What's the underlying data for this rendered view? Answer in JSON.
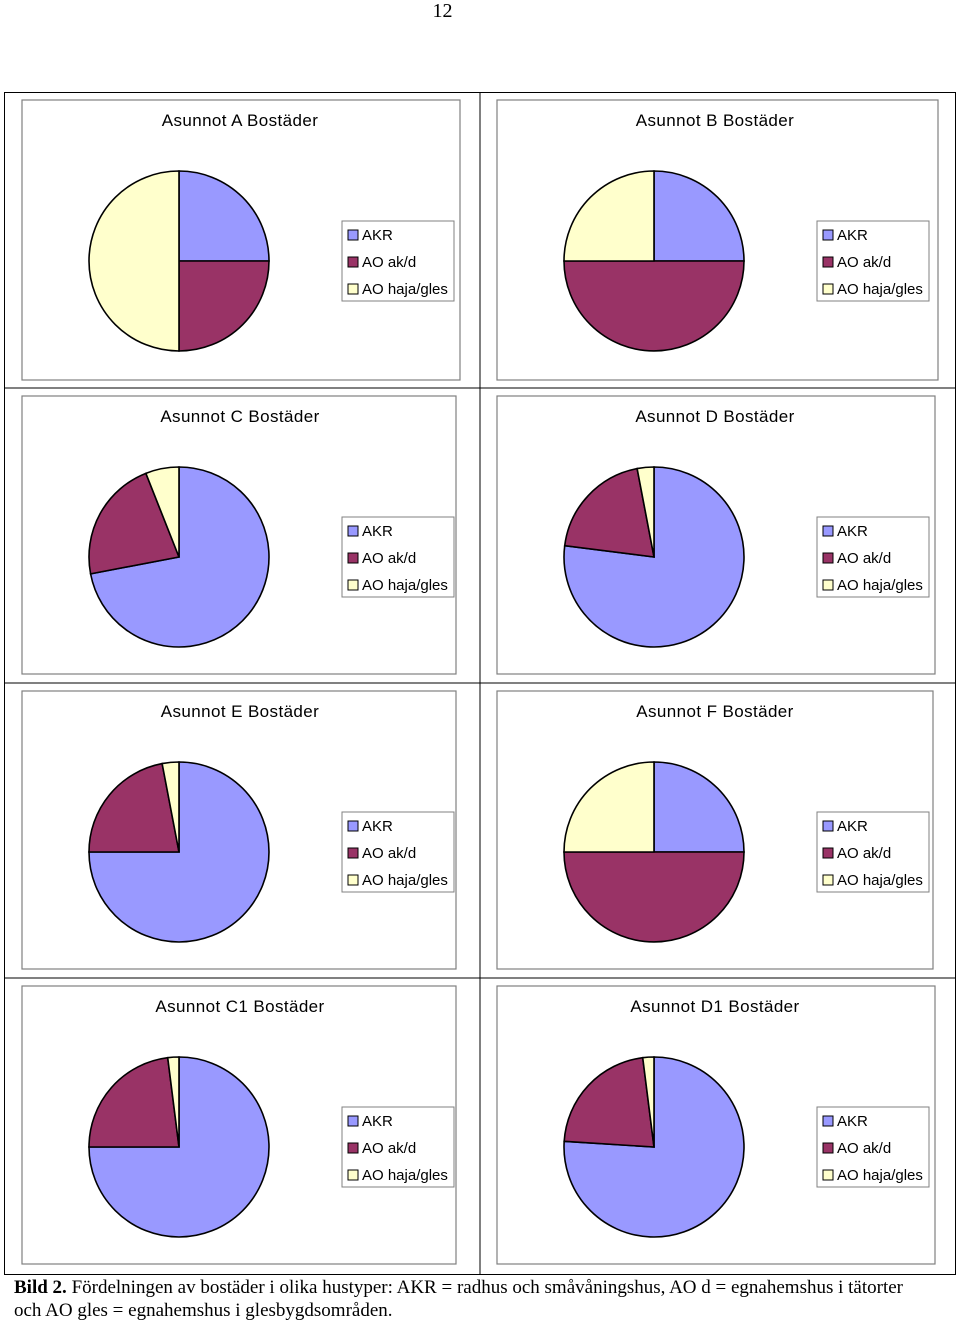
{
  "page_number": "12",
  "legend_colors": {
    "AKR": "#9999ff",
    "AO ak/d": "#993366",
    "AO haja/gles": "#ffffcc"
  },
  "chart_data": [
    {
      "type": "pie",
      "title": "Asunnot A Bostäder",
      "labels": [
        "AKR",
        "AO ak/d",
        "AO haja/gles"
      ],
      "values": [
        25,
        25,
        50
      ]
    },
    {
      "type": "pie",
      "title": "Asunnot B Bostäder",
      "labels": [
        "AKR",
        "AO ak/d",
        "AO haja/gles"
      ],
      "values": [
        25,
        50,
        25
      ]
    },
    {
      "type": "pie",
      "title": "Asunnot C Bostäder",
      "labels": [
        "AKR",
        "AO ak/d",
        "AO haja/gles"
      ],
      "values": [
        72,
        22,
        6
      ]
    },
    {
      "type": "pie",
      "title": "Asunnot D Bostäder",
      "labels": [
        "AKR",
        "AO ak/d",
        "AO haja/gles"
      ],
      "values": [
        77,
        20,
        3
      ]
    },
    {
      "type": "pie",
      "title": "Asunnot E Bostäder",
      "labels": [
        "AKR",
        "AO ak/d",
        "AO haja/gles"
      ],
      "values": [
        75,
        22,
        3
      ]
    },
    {
      "type": "pie",
      "title": "Asunnot F Bostäder",
      "labels": [
        "AKR",
        "AO ak/d",
        "AO haja/gles"
      ],
      "values": [
        25,
        50,
        25
      ]
    },
    {
      "type": "pie",
      "title": "Asunnot C1 Bostäder",
      "labels": [
        "AKR",
        "AO ak/d",
        "AO haja/gles"
      ],
      "values": [
        75,
        23,
        2
      ]
    },
    {
      "type": "pie",
      "title": "Asunnot D1 Bostäder",
      "labels": [
        "AKR",
        "AO ak/d",
        "AO haja/gles"
      ],
      "values": [
        76,
        22,
        2
      ]
    }
  ],
  "caption": {
    "label": "Bild 2.",
    "text": " Fördelningen av bostäder i olika hustyper: AKR = radhus och småvåningshus, AO d = egnahemshus i tätorter och AO gles = egnahemshus i glesbygdsområden."
  }
}
